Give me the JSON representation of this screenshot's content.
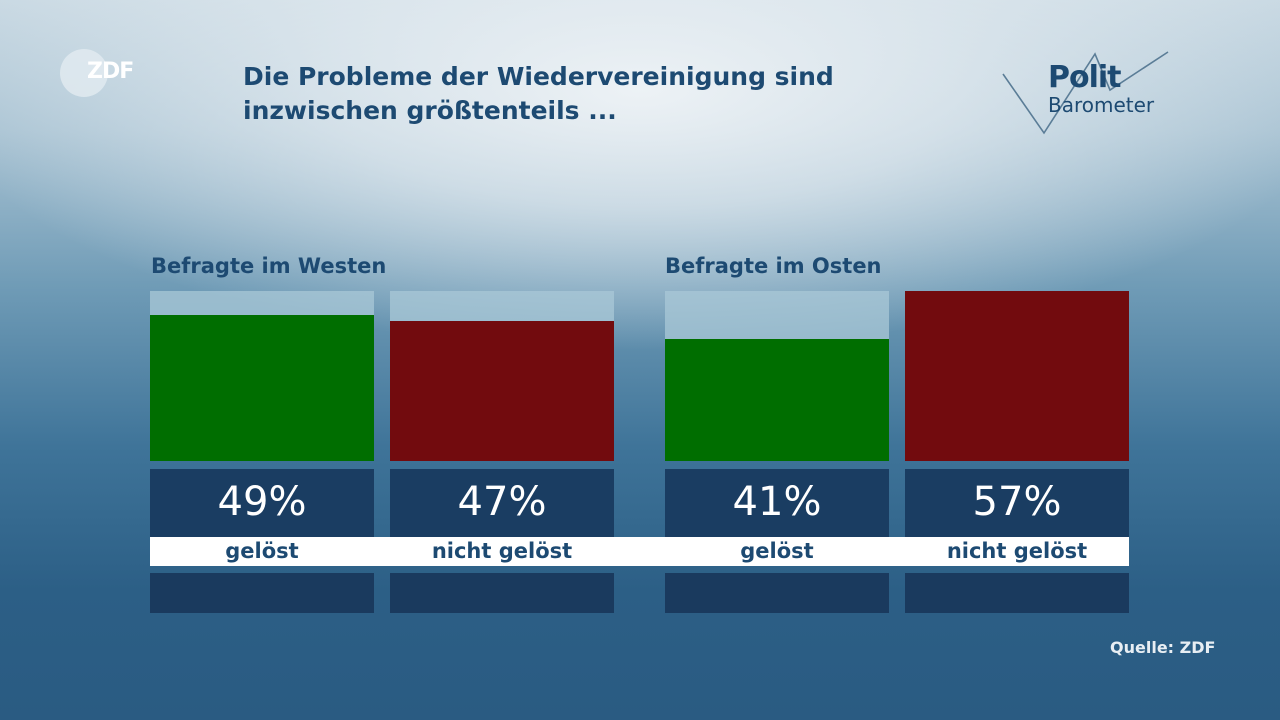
{
  "brand": {
    "logo": "ZDF",
    "polit_line1": "Polit",
    "polit_line2": "Barometer"
  },
  "title_line1": "Die Probleme der Wiedervereinigung sind",
  "title_line2": "inzwischen größtenteils ...",
  "source": "Quelle: ZDF",
  "colors": {
    "geloest": "#006e00",
    "nicht_geloest": "#720b0e",
    "value_box": "#1a3d62"
  },
  "chart_data": {
    "type": "bar",
    "title": "Die Probleme der Wiedervereinigung sind inzwischen größtenteils ...",
    "unit": "%",
    "scale_max": 57,
    "categories": [
      "gelöst",
      "nicht gelöst"
    ],
    "series": [
      {
        "name": "Befragte im Westen",
        "values": [
          49,
          47
        ],
        "labels": [
          "49%",
          "47%"
        ]
      },
      {
        "name": "Befragte im Osten",
        "values": [
          41,
          57
        ],
        "labels": [
          "41%",
          "57%"
        ]
      }
    ]
  }
}
